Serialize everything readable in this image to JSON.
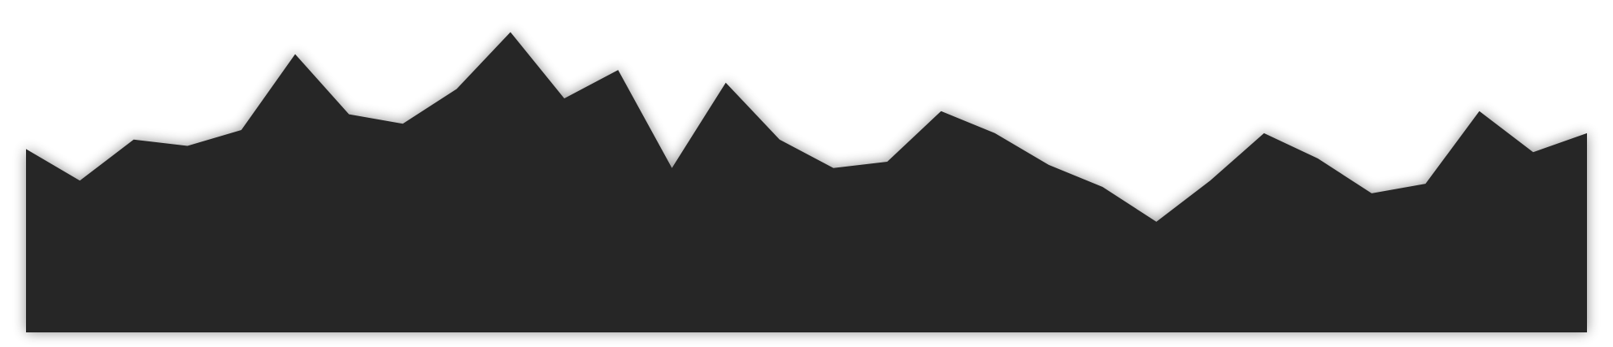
{
  "chart_data": {
    "type": "area",
    "title": "",
    "xlabel": "",
    "ylabel": "",
    "x": [
      0,
      1,
      2,
      3,
      4,
      5,
      6,
      7,
      8,
      9,
      10,
      11,
      12,
      13,
      14,
      15,
      16,
      17,
      18,
      19,
      20,
      21,
      22,
      23,
      24,
      25,
      26,
      27,
      28,
      29
    ],
    "series": [
      {
        "name": "",
        "values": [
          58,
          48,
          61,
          59,
          64,
          88,
          69,
          66,
          77,
          95,
          74,
          83,
          52,
          79,
          61,
          52,
          54,
          70,
          63,
          53,
          46,
          35,
          48,
          63,
          55,
          44,
          47,
          70,
          57,
          63
        ]
      }
    ],
    "ylim": [
      0,
      100
    ],
    "grid": false,
    "legend": "none",
    "axes_visible": false,
    "fill_color": "#262626",
    "shadow_color": "#000000"
  }
}
